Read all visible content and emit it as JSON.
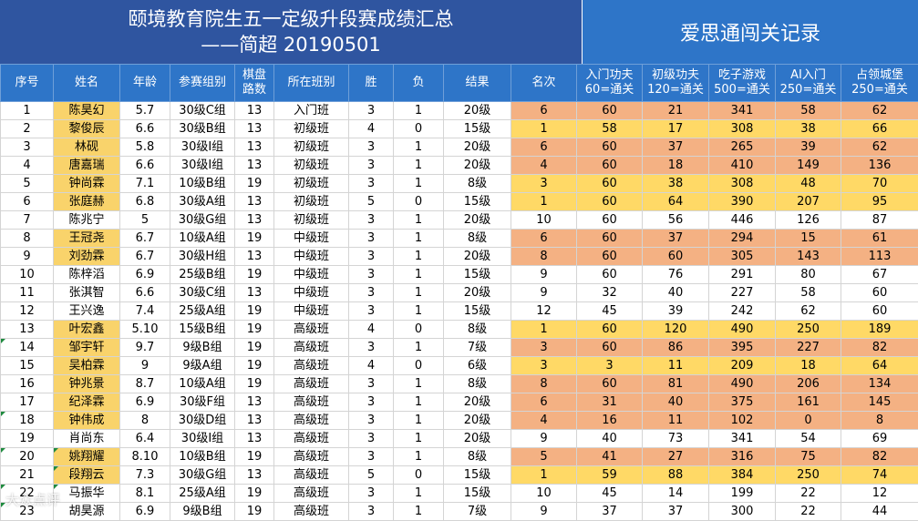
{
  "title_main_line1": "颐境教育院生五一定级升段赛成绩汇总",
  "title_main_line2": "——简超 20190501",
  "title_side": "爱思通闯关记录",
  "headers": [
    "序号",
    "姓名",
    "年龄",
    "参赛组别",
    "棋盘\n路数",
    "所在班别",
    "胜",
    "负",
    "结果",
    "名次",
    "入门功夫\n60=通关",
    "初级功夫\n120=通关",
    "吃子游戏\n500=通关",
    "AI入门\n250=通关",
    "占领城堡\n250=通关"
  ],
  "colors": {
    "title_left_bg": "#2f55a0",
    "header_bg": "#2e75c8",
    "orange": "#f4b183",
    "yellow": "#ffd966"
  },
  "rows": [
    [
      "1",
      "陈昊幻",
      "5.7",
      "30级C组",
      "13",
      "入门班",
      "3",
      "1",
      "20级",
      "6",
      "60",
      "21",
      "341",
      "58",
      "62"
    ],
    [
      "2",
      "黎俊辰",
      "6.6",
      "30级B组",
      "13",
      "初级班",
      "4",
      "0",
      "15级",
      "1",
      "58",
      "17",
      "308",
      "38",
      "66"
    ],
    [
      "3",
      "林砚",
      "5.8",
      "30级I组",
      "13",
      "初级班",
      "3",
      "1",
      "20级",
      "6",
      "60",
      "37",
      "265",
      "39",
      "62"
    ],
    [
      "4",
      "唐嘉瑞",
      "6.6",
      "30级I组",
      "13",
      "初级班",
      "3",
      "1",
      "20级",
      "4",
      "60",
      "18",
      "410",
      "149",
      "136"
    ],
    [
      "5",
      "钟尚霖",
      "7.1",
      "10级B组",
      "19",
      "初级班",
      "3",
      "1",
      "8级",
      "3",
      "60",
      "38",
      "308",
      "48",
      "70"
    ],
    [
      "6",
      "张庭赫",
      "6.8",
      "30级A组",
      "13",
      "初级班",
      "5",
      "0",
      "15级",
      "1",
      "60",
      "64",
      "390",
      "207",
      "95"
    ],
    [
      "7",
      "陈兆宁",
      "5",
      "30级G组",
      "13",
      "初级班",
      "3",
      "1",
      "20级",
      "10",
      "60",
      "56",
      "446",
      "126",
      "87"
    ],
    [
      "8",
      "王冠尧",
      "6.7",
      "10级A组",
      "19",
      "中级班",
      "3",
      "1",
      "8级",
      "6",
      "60",
      "37",
      "294",
      "15",
      "61"
    ],
    [
      "9",
      "刘劲霖",
      "6.7",
      "30级H组",
      "13",
      "中级班",
      "3",
      "1",
      "20级",
      "8",
      "60",
      "60",
      "305",
      "143",
      "113"
    ],
    [
      "10",
      "陈梓滔",
      "6.9",
      "25级B组",
      "19",
      "中级班",
      "3",
      "1",
      "15级",
      "9",
      "60",
      "76",
      "291",
      "80",
      "67"
    ],
    [
      "11",
      "张淇智",
      "6.6",
      "30级C组",
      "13",
      "中级班",
      "3",
      "1",
      "20级",
      "9",
      "32",
      "40",
      "227",
      "58",
      "60"
    ],
    [
      "12",
      "王兴逸",
      "7.4",
      "25级A组",
      "19",
      "中级班",
      "3",
      "1",
      "15级",
      "12",
      "45",
      "39",
      "242",
      "62",
      "60"
    ],
    [
      "13",
      "叶宏鑫",
      "5.10",
      "15级B组",
      "19",
      "高级班",
      "4",
      "0",
      "8级",
      "1",
      "60",
      "120",
      "490",
      "250",
      "189"
    ],
    [
      "14",
      "邹宇轩",
      "9.7",
      "9级B组",
      "19",
      "高级班",
      "3",
      "1",
      "7级",
      "3",
      "60",
      "86",
      "395",
      "227",
      "82"
    ],
    [
      "15",
      "吴柏霖",
      "9",
      "9级A组",
      "19",
      "高级班",
      "4",
      "0",
      "6级",
      "3",
      "3",
      "11",
      "209",
      "18",
      "64"
    ],
    [
      "16",
      "钟兆景",
      "8.7",
      "10级A组",
      "19",
      "高级班",
      "3",
      "1",
      "8级",
      "8",
      "60",
      "81",
      "490",
      "206",
      "134"
    ],
    [
      "17",
      "纪泽霖",
      "6.9",
      "30级F组",
      "13",
      "高级班",
      "3",
      "1",
      "20级",
      "6",
      "31",
      "40",
      "375",
      "161",
      "145"
    ],
    [
      "18",
      "钟伟成",
      "8",
      "30级D组",
      "13",
      "高级班",
      "3",
      "1",
      "20级",
      "4",
      "16",
      "11",
      "102",
      "0",
      "8"
    ],
    [
      "19",
      "肖尚东",
      "6.4",
      "30级I组",
      "13",
      "高级班",
      "3",
      "1",
      "20级",
      "9",
      "40",
      "73",
      "341",
      "54",
      "69"
    ],
    [
      "20",
      "姚翔耀",
      "8.10",
      "10级B组",
      "19",
      "高级班",
      "3",
      "1",
      "8级",
      "5",
      "41",
      "27",
      "316",
      "75",
      "82"
    ],
    [
      "21",
      "段翔云",
      "7.3",
      "30级G组",
      "13",
      "高级班",
      "5",
      "0",
      "15级",
      "1",
      "59",
      "88",
      "384",
      "250",
      "74"
    ],
    [
      "22",
      "马振华",
      "8.1",
      "25级A组",
      "19",
      "高级班",
      "3",
      "1",
      "15级",
      "10",
      "45",
      "14",
      "199",
      "22",
      "12"
    ],
    [
      "23",
      "胡昊源",
      "6.9",
      "9级B组",
      "19",
      "高级班",
      "3",
      "1",
      "7级",
      "9",
      "37",
      "37",
      "300",
      "22",
      "44"
    ]
  ],
  "row_highlight": [
    "orange",
    "yellow",
    "orange",
    "orange",
    "yellow",
    "yellow",
    "none",
    "orange",
    "orange",
    "none",
    "none",
    "none",
    "yellow",
    "orange",
    "yellow",
    "orange",
    "orange",
    "orange",
    "none",
    "orange",
    "yellow",
    "none",
    "none"
  ],
  "watermark": "大众点评"
}
